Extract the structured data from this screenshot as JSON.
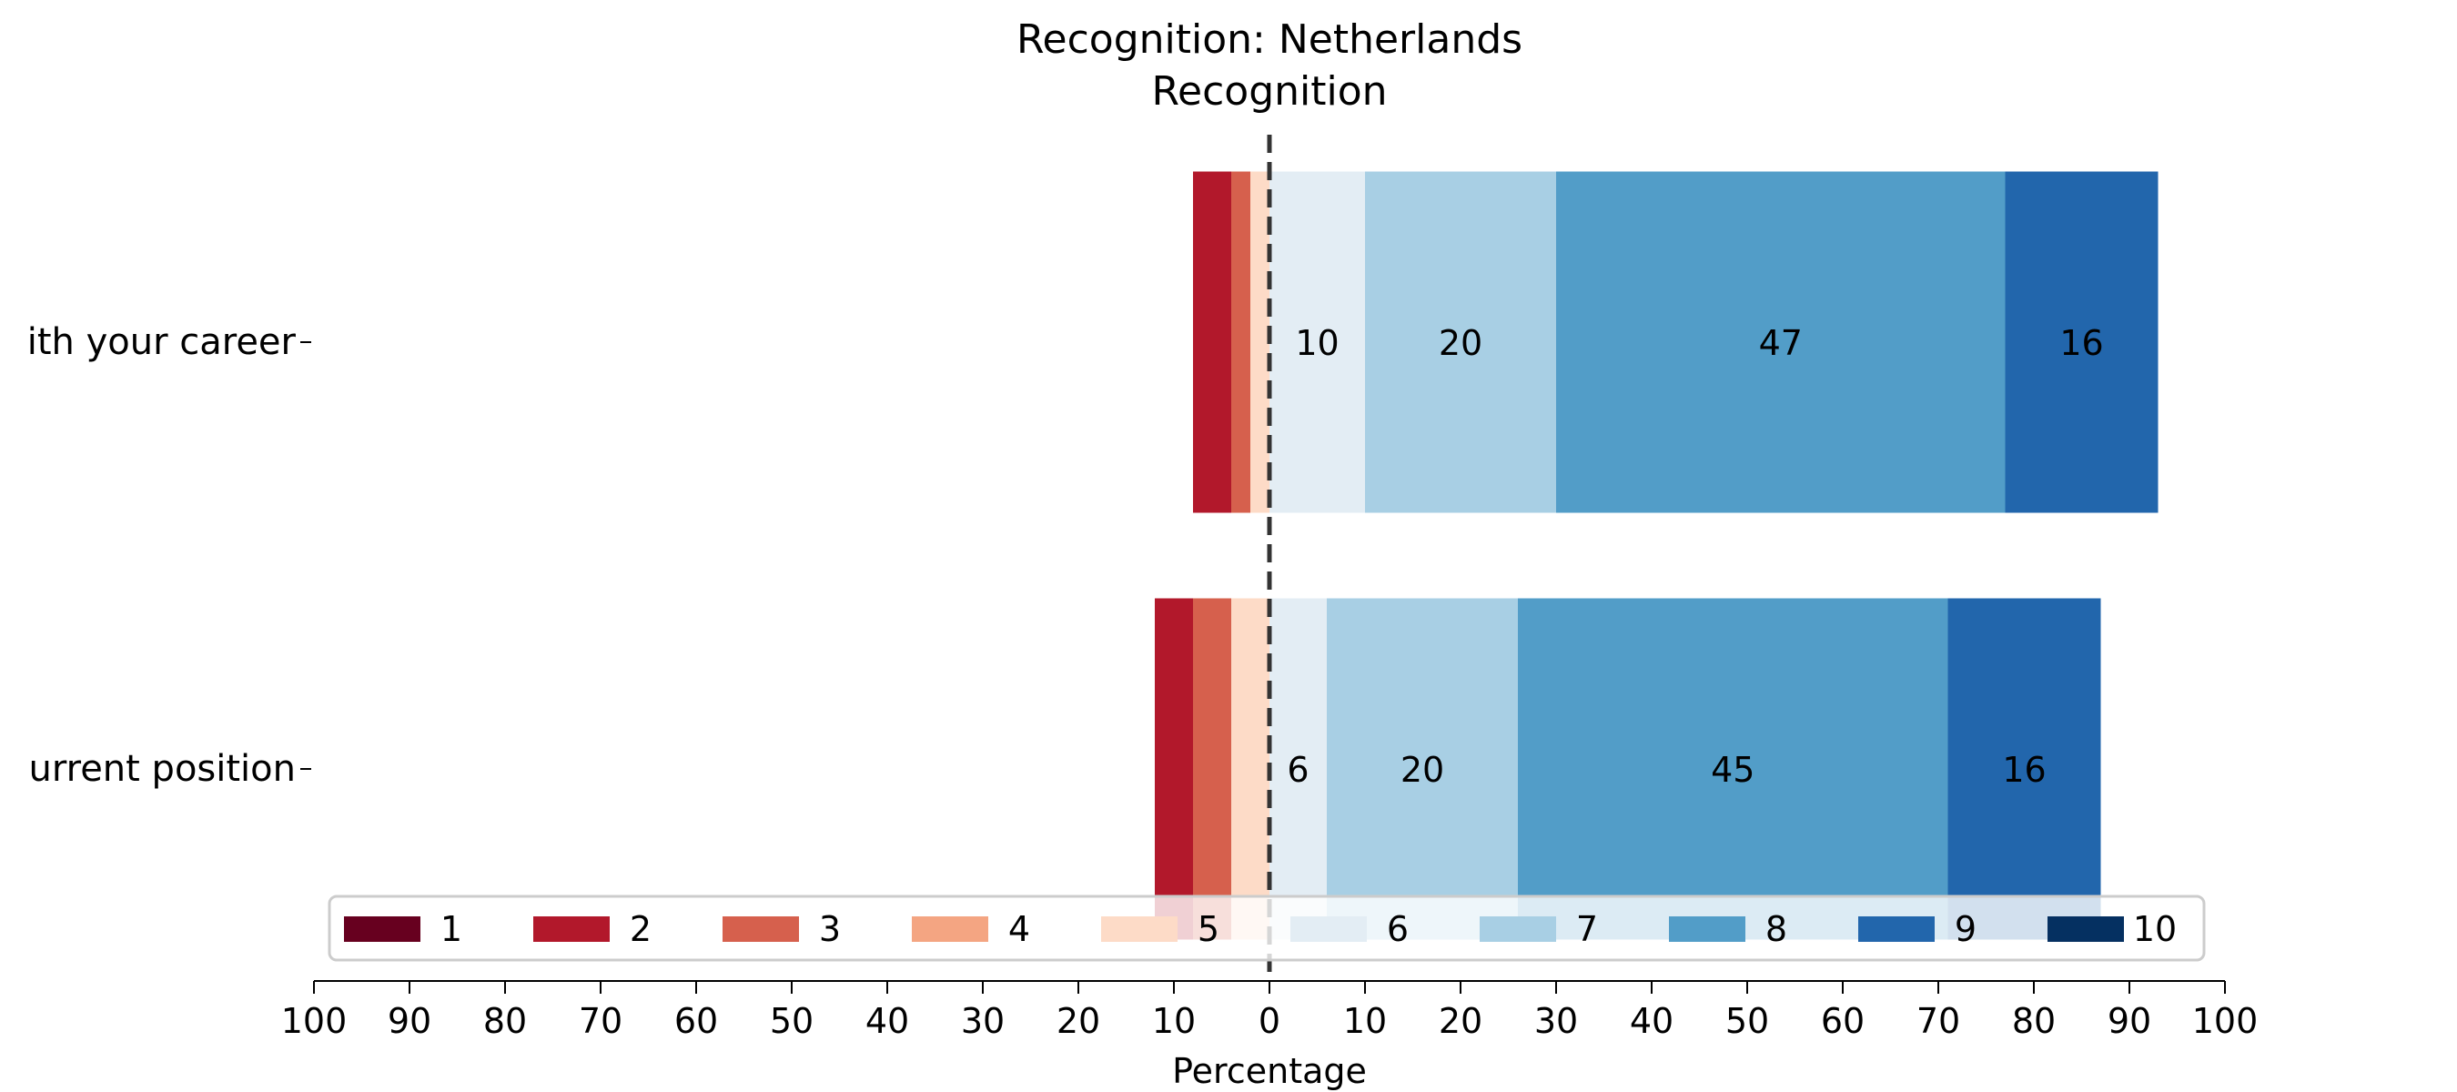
{
  "chart_data": {
    "type": "bar",
    "orientation": "horizontal",
    "stacked": "diverging",
    "title": "Recognition: Netherlands",
    "subtitle": "Recognition",
    "xlabel": "Percentage",
    "ylabel": "",
    "xlim": [
      -100,
      100
    ],
    "xticks": [
      -100,
      -90,
      -80,
      -70,
      -60,
      -50,
      -40,
      -30,
      -20,
      -10,
      0,
      10,
      20,
      30,
      40,
      50,
      60,
      70,
      80,
      90,
      100
    ],
    "xtick_labels": [
      "100",
      "90",
      "80",
      "70",
      "60",
      "50",
      "40",
      "30",
      "20",
      "10",
      "0",
      "10",
      "20",
      "30",
      "40",
      "50",
      "60",
      "70",
      "80",
      "90",
      "100"
    ],
    "categories": [
      "ith your career",
      "urrent position"
    ],
    "category_values": [
      "1",
      "2",
      "3",
      "4",
      "5",
      "6",
      "7",
      "8",
      "9",
      "10"
    ],
    "colors": [
      "#67001f",
      "#b2182b",
      "#d6604d",
      "#f4a582",
      "#fddbc7",
      "#e3edf4",
      "#a8cfe4",
      "#529dc8",
      "#2266ac",
      "#053061"
    ],
    "series": [
      {
        "name": "1",
        "values": [
          0,
          0
        ]
      },
      {
        "name": "2",
        "values": [
          4,
          4
        ]
      },
      {
        "name": "3",
        "values": [
          2,
          4
        ]
      },
      {
        "name": "4",
        "values": [
          0,
          0
        ]
      },
      {
        "name": "5",
        "values": [
          2,
          4
        ]
      },
      {
        "name": "6",
        "values": [
          10,
          6
        ]
      },
      {
        "name": "7",
        "values": [
          20,
          20
        ]
      },
      {
        "name": "8",
        "values": [
          47,
          45
        ]
      },
      {
        "name": "9",
        "values": [
          16,
          16
        ]
      },
      {
        "name": "10",
        "values": [
          0,
          0
        ]
      }
    ],
    "data_label_min": 5,
    "center_line": "dashed at 0",
    "grid": false,
    "legend": {
      "position": "bottom-center, inside axes",
      "columns": 10
    }
  }
}
